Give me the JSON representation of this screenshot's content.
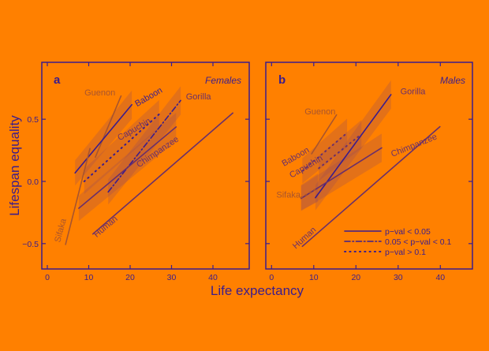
{
  "colors": {
    "background": "#ff8000",
    "axis": "#3b1c8c",
    "significant": "#3b1c8c",
    "medium": "#6a2f6a",
    "faded": "#a8542e",
    "band": "#9a4a55"
  },
  "chart_data": [
    {
      "type": "line",
      "panel_letter": "a",
      "title": "Females",
      "xlabel": "Life expectancy",
      "ylabel": "Lifespan equality",
      "xlim": [
        -1.3,
        48
      ],
      "ylim": [
        -0.7,
        0.96
      ],
      "xticks": [
        "0",
        "10",
        "20",
        "30",
        "40"
      ],
      "yticks": [
        "−0.5",
        "0.0",
        "0.5"
      ],
      "series": [
        {
          "name": "Guenon",
          "x": [
            11.6,
            17.8
          ],
          "y": [
            0.195,
            0.687
          ],
          "style": "solid",
          "tone": "faded",
          "band": false
        },
        {
          "name": "Baboon",
          "x": [
            6.7,
            20.4
          ],
          "y": [
            0.068,
            0.617
          ],
          "style": "solid",
          "tone": "significant",
          "band": true
        },
        {
          "name": "Gorilla",
          "x": [
            14.7,
            32.2
          ],
          "y": [
            -0.085,
            0.651
          ],
          "style": "dashdot",
          "tone": "significant",
          "band": true
        },
        {
          "name": "Capuchin",
          "x": [
            8.9,
            27.0
          ],
          "y": [
            0.0,
            0.54
          ],
          "style": "dotted",
          "tone": "significant",
          "band": true
        },
        {
          "name": "Chimpanzee",
          "x": [
            7.6,
            31.1
          ],
          "y": [
            -0.216,
            0.438
          ],
          "style": "solid",
          "tone": "medium",
          "band": true
        },
        {
          "name": "Human",
          "x": [
            11.0,
            44.8
          ],
          "y": [
            -0.423,
            0.55
          ],
          "style": "solid",
          "tone": "medium",
          "band": false
        },
        {
          "name": "Sifaka",
          "x": [
            4.4,
            10.3
          ],
          "y": [
            -0.507,
            0.264
          ],
          "style": "solid",
          "tone": "faded",
          "band": false
        }
      ]
    },
    {
      "type": "line",
      "panel_letter": "b",
      "title": "Males",
      "xlim": [
        -1.4,
        47.6
      ],
      "ylim": [
        -0.7,
        0.96
      ],
      "xticks": [
        "0",
        "10",
        "20",
        "30",
        "40"
      ],
      "series": [
        {
          "name": "Gorilla",
          "x": [
            10.4,
            28.3
          ],
          "y": [
            -0.131,
            0.698
          ],
          "style": "solid",
          "tone": "significant",
          "band": true
        },
        {
          "name": "Guenon",
          "x": [
            9.5,
            15.4
          ],
          "y": [
            0.222,
            0.535
          ],
          "style": "solid",
          "tone": "faded",
          "band": false
        },
        {
          "name": "Baboon",
          "x": [
            7.3,
            17.9
          ],
          "y": [
            0.085,
            0.39
          ],
          "style": "dotted",
          "tone": "medium",
          "band": true
        },
        {
          "name": "Capuchin",
          "x": [
            11.2,
            21.3
          ],
          "y": [
            0.106,
            0.38
          ],
          "style": "dotted",
          "tone": "medium",
          "band": true
        },
        {
          "name": "Chimpanzee",
          "x": [
            7.0,
            26.1
          ],
          "y": [
            -0.137,
            0.27
          ],
          "style": "solid",
          "tone": "medium",
          "band": true
        },
        {
          "name": "Sifaka",
          "x": [
            7.0,
            11.0
          ],
          "y": [
            -0.13,
            -0.05
          ],
          "style": "dotted",
          "tone": "faded",
          "band": true
        },
        {
          "name": "Human",
          "x": [
            7.3,
            39.9
          ],
          "y": [
            -0.522,
            0.44
          ],
          "style": "solid",
          "tone": "medium",
          "band": false
        }
      ],
      "legend": {
        "placement": "bottom-right",
        "entries": [
          {
            "label": "p−val < 0.05",
            "style": "solid"
          },
          {
            "label": "0.05 < p−val < 0.1",
            "style": "dashdot"
          },
          {
            "label": "p−val > 0.1",
            "style": "dotted"
          }
        ]
      }
    }
  ]
}
